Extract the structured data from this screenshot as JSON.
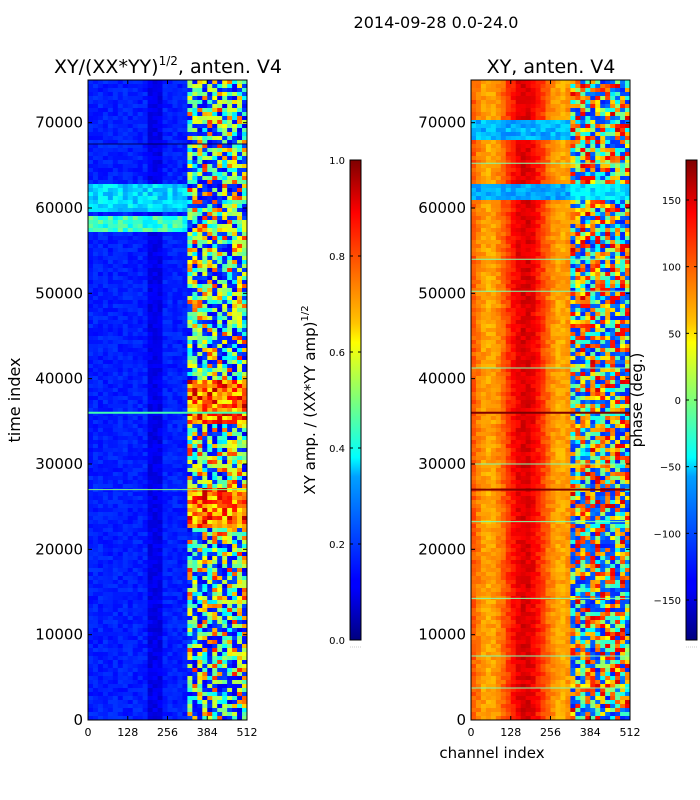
{
  "suptitle": "2014-09-28 0.0-24.0",
  "chart_data": [
    {
      "type": "heatmap",
      "title_main": "XY/(XX*YY)",
      "title_exp": "1/2",
      "title_suffix": ", anten. V4",
      "xlabel": "",
      "ylabel": "time index",
      "xlim": [
        0,
        512
      ],
      "ylim": [
        0,
        75000
      ],
      "x_ticks": [
        0,
        128,
        256,
        384,
        512
      ],
      "x_tick_labels": [
        "0",
        "128",
        "256",
        "384",
        "512"
      ],
      "y_ticks": [
        0,
        10000,
        20000,
        30000,
        40000,
        50000,
        60000,
        70000
      ],
      "y_tick_labels": [
        "0",
        "10000",
        "20000",
        "30000",
        "40000",
        "50000",
        "60000",
        "70000"
      ],
      "colorbar": {
        "label_main": "XY amp. / (XX*YY amp)",
        "label_exp": "1/2",
        "range": [
          0,
          1.0
        ],
        "ticks": [
          0.0,
          0.2,
          0.4,
          0.6,
          0.8,
          1.0
        ],
        "tick_labels": [
          "0.0",
          "0.2",
          "0.4",
          "0.6",
          "0.8",
          "1.0"
        ],
        "colormap": "jet"
      }
    },
    {
      "type": "heatmap",
      "title_main": "XY, anten. V4",
      "xlabel": "channel index",
      "ylabel": "",
      "xlim": [
        0,
        512
      ],
      "ylim": [
        0,
        75000
      ],
      "x_ticks": [
        0,
        128,
        256,
        384,
        512
      ],
      "x_tick_labels": [
        "0",
        "128",
        "256",
        "384",
        "512"
      ],
      "y_ticks": [
        0,
        10000,
        20000,
        30000,
        40000,
        50000,
        60000,
        70000
      ],
      "y_tick_labels": [
        "0",
        "10000",
        "20000",
        "30000",
        "40000",
        "50000",
        "60000",
        "70000"
      ],
      "colorbar": {
        "label_main": "phase (deg.)",
        "range": [
          -180,
          180
        ],
        "ticks": [
          -150,
          -100,
          -50,
          0,
          50,
          100,
          150
        ],
        "tick_labels": [
          "−150",
          "−100",
          "−50",
          "0",
          "50",
          "100",
          "150"
        ],
        "colormap": "jet"
      }
    }
  ],
  "colors": {
    "jet_low": "#00007f",
    "jet_blue": "#0000ff",
    "jet_cyan": "#00ffff",
    "jet_yellow": "#ffff00",
    "jet_red": "#ff0000",
    "jet_high": "#7f0000"
  }
}
